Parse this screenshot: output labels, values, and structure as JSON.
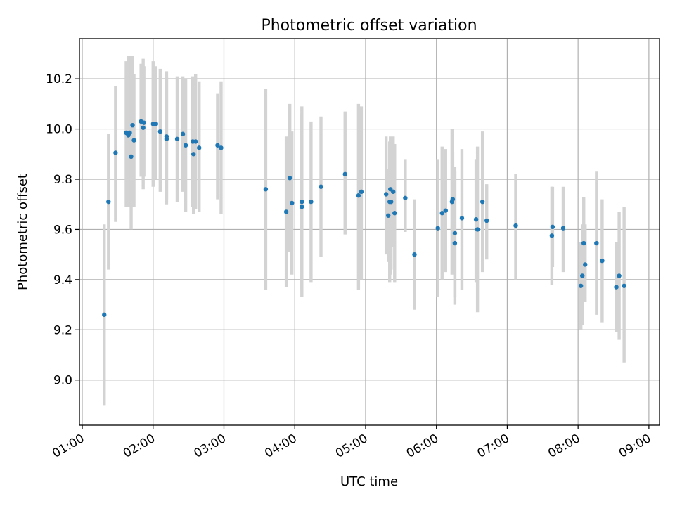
{
  "chart_data": {
    "type": "scatter",
    "title": "Photometric offset variation",
    "xlabel": "UTC time",
    "ylabel": "Photometric offset",
    "x_unit": "hours UTC",
    "xlim": [
      0.96,
      9.15
    ],
    "ylim": [
      8.82,
      10.36
    ],
    "x_ticks": [
      1,
      2,
      3,
      4,
      5,
      6,
      7,
      8,
      9
    ],
    "x_tick_labels": [
      "01:00",
      "02:00",
      "03:00",
      "04:00",
      "05:00",
      "06:00",
      "07:00",
      "08:00",
      "09:00"
    ],
    "y_ticks": [
      9.0,
      9.2,
      9.4,
      9.6,
      9.8,
      10.0,
      10.2
    ],
    "y_tick_labels": [
      "9.0",
      "9.2",
      "9.4",
      "9.6",
      "9.8",
      "10.0",
      "10.2"
    ],
    "grid": true,
    "legend": "none",
    "colors": {
      "points": "#1f77b4",
      "error_bars": "#d3d3d3",
      "grid": "#b0b0b0"
    },
    "points": [
      {
        "x": 1.31,
        "y": 9.26,
        "lo": 8.9,
        "hi": 9.62
      },
      {
        "x": 1.37,
        "y": 9.71,
        "lo": 9.44,
        "hi": 9.98
      },
      {
        "x": 1.47,
        "y": 9.905,
        "lo": 9.63,
        "hi": 10.17
      },
      {
        "x": 1.62,
        "y": 9.985,
        "lo": 9.69,
        "hi": 10.27
      },
      {
        "x": 1.65,
        "y": 9.975,
        "lo": 9.69,
        "hi": 10.29
      },
      {
        "x": 1.67,
        "y": 9.985,
        "lo": 9.69,
        "hi": 10.29
      },
      {
        "x": 1.69,
        "y": 9.89,
        "lo": 9.6,
        "hi": 10.29
      },
      {
        "x": 1.71,
        "y": 10.015,
        "lo": 9.69,
        "hi": 10.29
      },
      {
        "x": 1.73,
        "y": 9.955,
        "lo": 9.69,
        "hi": 10.22
      },
      {
        "x": 1.83,
        "y": 10.03,
        "lo": 9.81,
        "hi": 10.26
      },
      {
        "x": 1.86,
        "y": 10.005,
        "lo": 9.76,
        "hi": 10.28
      },
      {
        "x": 1.87,
        "y": 10.025,
        "lo": 9.81,
        "hi": 10.25
      },
      {
        "x": 2.0,
        "y": 10.02,
        "lo": 9.77,
        "hi": 10.27
      },
      {
        "x": 2.04,
        "y": 10.02,
        "lo": 9.8,
        "hi": 10.25
      },
      {
        "x": 2.1,
        "y": 9.99,
        "lo": 9.75,
        "hi": 10.24
      },
      {
        "x": 2.19,
        "y": 9.96,
        "lo": 9.7,
        "hi": 10.23
      },
      {
        "x": 2.19,
        "y": 9.97,
        "lo": 9.72,
        "hi": 10.21
      },
      {
        "x": 2.34,
        "y": 9.96,
        "lo": 9.71,
        "hi": 10.21
      },
      {
        "x": 2.42,
        "y": 9.98,
        "lo": 9.75,
        "hi": 10.21
      },
      {
        "x": 2.46,
        "y": 9.935,
        "lo": 9.67,
        "hi": 10.2
      },
      {
        "x": 2.56,
        "y": 9.95,
        "lo": 9.69,
        "hi": 10.21
      },
      {
        "x": 2.57,
        "y": 9.9,
        "lo": 9.66,
        "hi": 10.2
      },
      {
        "x": 2.6,
        "y": 9.95,
        "lo": 9.68,
        "hi": 10.22
      },
      {
        "x": 2.65,
        "y": 9.925,
        "lo": 9.67,
        "hi": 10.19
      },
      {
        "x": 2.91,
        "y": 9.935,
        "lo": 9.72,
        "hi": 10.14
      },
      {
        "x": 2.96,
        "y": 9.925,
        "lo": 9.66,
        "hi": 10.19
      },
      {
        "x": 3.59,
        "y": 9.76,
        "lo": 9.36,
        "hi": 10.16
      },
      {
        "x": 3.88,
        "y": 9.67,
        "lo": 9.37,
        "hi": 9.97
      },
      {
        "x": 3.93,
        "y": 9.805,
        "lo": 9.51,
        "hi": 10.1
      },
      {
        "x": 3.96,
        "y": 9.705,
        "lo": 9.42,
        "hi": 9.99
      },
      {
        "x": 4.1,
        "y": 9.69,
        "lo": 9.33,
        "hi": 10.06
      },
      {
        "x": 4.1,
        "y": 9.71,
        "lo": 9.36,
        "hi": 10.09
      },
      {
        "x": 4.23,
        "y": 9.71,
        "lo": 9.39,
        "hi": 10.03
      },
      {
        "x": 4.37,
        "y": 9.77,
        "lo": 9.49,
        "hi": 10.05
      },
      {
        "x": 4.71,
        "y": 9.82,
        "lo": 9.58,
        "hi": 10.07
      },
      {
        "x": 4.9,
        "y": 9.735,
        "lo": 9.36,
        "hi": 10.1
      },
      {
        "x": 4.94,
        "y": 9.75,
        "lo": 9.4,
        "hi": 10.09
      },
      {
        "x": 5.29,
        "y": 9.74,
        "lo": 9.5,
        "hi": 9.97
      },
      {
        "x": 5.32,
        "y": 9.655,
        "lo": 9.47,
        "hi": 9.84
      },
      {
        "x": 5.34,
        "y": 9.71,
        "lo": 9.39,
        "hi": 9.95
      },
      {
        "x": 5.35,
        "y": 9.76,
        "lo": 9.42,
        "hi": 9.97
      },
      {
        "x": 5.36,
        "y": 9.71,
        "lo": 9.44,
        "hi": 9.96
      },
      {
        "x": 5.39,
        "y": 9.75,
        "lo": 9.53,
        "hi": 9.97
      },
      {
        "x": 5.41,
        "y": 9.665,
        "lo": 9.39,
        "hi": 9.94
      },
      {
        "x": 5.56,
        "y": 9.725,
        "lo": 9.59,
        "hi": 9.88
      },
      {
        "x": 5.69,
        "y": 9.5,
        "lo": 9.28,
        "hi": 9.72
      },
      {
        "x": 6.02,
        "y": 9.605,
        "lo": 9.33,
        "hi": 9.88
      },
      {
        "x": 6.08,
        "y": 9.665,
        "lo": 9.4,
        "hi": 9.93
      },
      {
        "x": 6.13,
        "y": 9.675,
        "lo": 9.43,
        "hi": 9.92
      },
      {
        "x": 6.22,
        "y": 9.71,
        "lo": 9.42,
        "hi": 10.0
      },
      {
        "x": 6.23,
        "y": 9.72,
        "lo": 9.53,
        "hi": 9.91
      },
      {
        "x": 6.26,
        "y": 9.545,
        "lo": 9.3,
        "hi": 9.83
      },
      {
        "x": 6.26,
        "y": 9.585,
        "lo": 9.33,
        "hi": 9.85
      },
      {
        "x": 6.36,
        "y": 9.645,
        "lo": 9.36,
        "hi": 9.92
      },
      {
        "x": 6.56,
        "y": 9.64,
        "lo": 9.39,
        "hi": 9.88
      },
      {
        "x": 6.58,
        "y": 9.6,
        "lo": 9.27,
        "hi": 9.93
      },
      {
        "x": 6.65,
        "y": 9.71,
        "lo": 9.43,
        "hi": 9.99
      },
      {
        "x": 6.71,
        "y": 9.635,
        "lo": 9.48,
        "hi": 9.78
      },
      {
        "x": 7.12,
        "y": 9.615,
        "lo": 9.4,
        "hi": 9.82
      },
      {
        "x": 7.63,
        "y": 9.575,
        "lo": 9.38,
        "hi": 9.77
      },
      {
        "x": 7.64,
        "y": 9.61,
        "lo": 9.45,
        "hi": 9.77
      },
      {
        "x": 7.79,
        "y": 9.605,
        "lo": 9.43,
        "hi": 9.77
      },
      {
        "x": 8.04,
        "y": 9.375,
        "lo": 9.2,
        "hi": 9.55
      },
      {
        "x": 8.06,
        "y": 9.415,
        "lo": 9.22,
        "hi": 9.62
      },
      {
        "x": 8.08,
        "y": 9.545,
        "lo": 9.36,
        "hi": 9.73
      },
      {
        "x": 8.1,
        "y": 9.46,
        "lo": 9.31,
        "hi": 9.62
      },
      {
        "x": 8.26,
        "y": 9.545,
        "lo": 9.26,
        "hi": 9.83
      },
      {
        "x": 8.34,
        "y": 9.475,
        "lo": 9.23,
        "hi": 9.72
      },
      {
        "x": 8.54,
        "y": 9.37,
        "lo": 9.19,
        "hi": 9.55
      },
      {
        "x": 8.58,
        "y": 9.415,
        "lo": 9.16,
        "hi": 9.67
      },
      {
        "x": 8.65,
        "y": 9.375,
        "lo": 9.07,
        "hi": 9.69
      }
    ]
  }
}
